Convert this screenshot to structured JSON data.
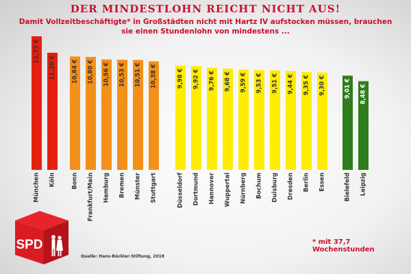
{
  "title": "DER MINDESTLOHN REICHT NICHT AUS!",
  "subtitle": "Damit Vollzeitbeschäftigte* in Großstädten nicht mit Hartz IV aufstocken müssen, brauchen sie einen Stundenlohn von mindestens ...",
  "footnote": "* mit 37,7 Wochenstunden",
  "source": "Quelle: Hans-Böckler-Stiftung, 2018",
  "logo_text": "SPD",
  "colors": {
    "red": "#e3200f",
    "orange": "#f39019",
    "yellow": "#ffec00",
    "green": "#2f7d1c",
    "title": "#c8102e"
  },
  "chart_data": {
    "type": "bar",
    "categories": [
      "München",
      "Köln",
      "Bonn",
      "Frankfurt/Main",
      "Hamburg",
      "Bremen",
      "Münster",
      "Stuttgart",
      "Düsseldorf",
      "Dortmund",
      "Hannover",
      "Wuppertal",
      "Nürnberg",
      "Bochum",
      "Duisburg",
      "Dresden",
      "Berlin",
      "Essen",
      "Bielefeld",
      "Leipzig"
    ],
    "values": [
      12.77,
      11.2,
      10.84,
      10.8,
      10.56,
      10.53,
      10.51,
      10.38,
      9.98,
      9.92,
      9.76,
      9.68,
      9.59,
      9.53,
      9.51,
      9.44,
      9.35,
      9.3,
      9.01,
      8.48
    ],
    "value_labels": [
      "12,77 €",
      "11,20 €",
      "10,84 €",
      "10,80 €",
      "10,56 €",
      "10,53 €",
      "10,51 €",
      "10,38 €",
      "9,98 €",
      "9,92 €",
      "9,76 €",
      "9,68 €",
      "9,59 €",
      "9,53 €",
      "9,51 €",
      "9,44 €",
      "9,35 €",
      "9,30 €",
      "9,01 €",
      "8,48 €"
    ],
    "groups": [
      "red",
      "red",
      "orange",
      "orange",
      "orange",
      "orange",
      "orange",
      "orange",
      "yellow",
      "yellow",
      "yellow",
      "yellow",
      "yellow",
      "yellow",
      "yellow",
      "yellow",
      "yellow",
      "yellow",
      "green",
      "green"
    ],
    "ylim": [
      0,
      12.77
    ],
    "grid": false
  }
}
